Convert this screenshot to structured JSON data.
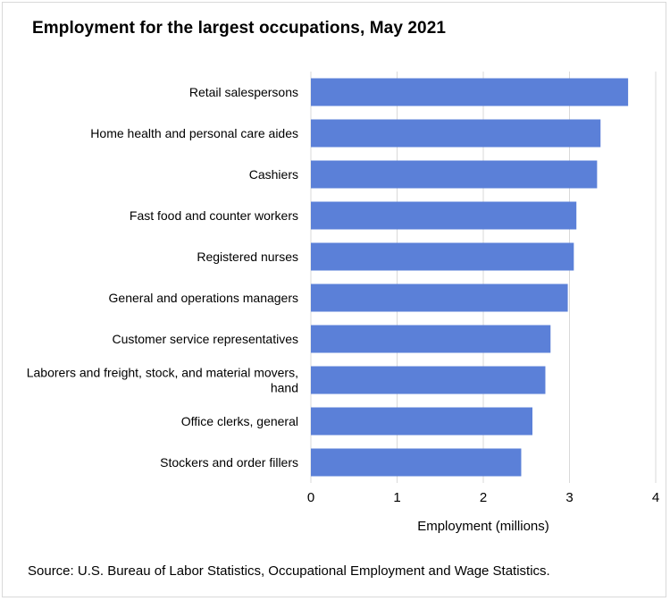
{
  "chart_data": {
    "type": "bar",
    "orientation": "horizontal",
    "title": "Employment for the largest occupations, May 2021",
    "xlabel": "Employment  (millions)",
    "ylabel": "",
    "xlim": [
      0,
      4
    ],
    "xticks": [
      0,
      1,
      2,
      3,
      4
    ],
    "grid": true,
    "categories": [
      [
        "Retail salespersons"
      ],
      [
        "Home health and personal care aides"
      ],
      [
        "Cashiers"
      ],
      [
        "Fast food and counter workers"
      ],
      [
        "Registered nurses"
      ],
      [
        "General and operations managers"
      ],
      [
        "Customer service representatives"
      ],
      [
        "Laborers and freight, stock, and material movers,",
        "hand"
      ],
      [
        "Office clerks, general"
      ],
      [
        "Stockers and order fillers"
      ]
    ],
    "values": [
      3.68,
      3.36,
      3.32,
      3.08,
      3.05,
      2.98,
      2.78,
      2.72,
      2.57,
      2.44
    ],
    "bar_color": "#5b80d8",
    "grid_color": "#d9d9d9",
    "source": "Source: U.S. Bureau of Labor Statistics, Occupational Employment  and Wage Statistics."
  }
}
